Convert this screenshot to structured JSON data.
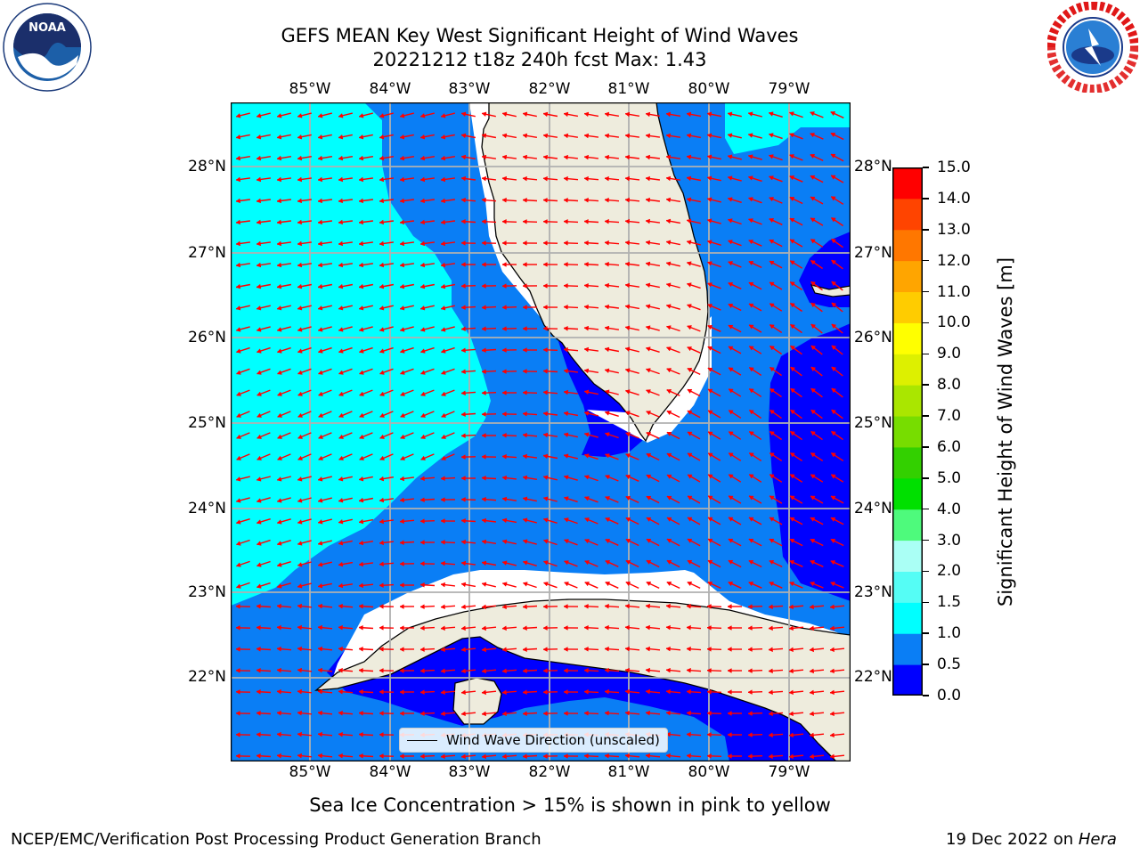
{
  "header": {
    "title_line1": "GEFS MEAN Key West Significant Height of Wind Waves",
    "title_line2": "20221212 t18z 240h fcst   Max: 1.43"
  },
  "logos": {
    "left": "NOAA",
    "right": "NATIONAL WEATHER SERVICE"
  },
  "map": {
    "lon_labels": [
      "85°W",
      "84°W",
      "83°W",
      "82°W",
      "81°W",
      "80°W",
      "79°W"
    ],
    "lat_labels": [
      "28°N",
      "27°N",
      "26°N",
      "25°N",
      "24°N",
      "23°N",
      "22°N"
    ],
    "legend_label": "Wind Wave Direction (unscaled)",
    "colors": {
      "land": "#eeecdd",
      "band_0_0_5": "#0000ff",
      "band_0_5_1_0": "#0a7ef5",
      "band_1_0_1_5": "#00ffff",
      "arrow": "#ff0000",
      "grid": "#b0b0b0"
    }
  },
  "colorbar": {
    "label": "Significant Height of Wind Waves [m]",
    "ticks": [
      "15.0",
      "14.0",
      "13.0",
      "12.0",
      "11.0",
      "10.0",
      "9.0",
      "8.0",
      "7.0",
      "6.0",
      "5.0",
      "4.0",
      "3.0",
      "2.0",
      "1.5",
      "1.0",
      "0.5",
      "0.0"
    ],
    "bands": [
      {
        "range": "0.0-0.5",
        "color": "#0000ff"
      },
      {
        "range": "0.5-1.0",
        "color": "#0a7ef5"
      },
      {
        "range": "1.0-1.5",
        "color": "#00ffff"
      },
      {
        "range": "1.5-2.0",
        "color": "#55fdf5"
      },
      {
        "range": "2.0-3.0",
        "color": "#aafff5"
      },
      {
        "range": "3.0-4.0",
        "color": "#4efa7c"
      },
      {
        "range": "4.0-5.0",
        "color": "#00e000"
      },
      {
        "range": "5.0-6.0",
        "color": "#33d000"
      },
      {
        "range": "6.0-7.0",
        "color": "#77dd00"
      },
      {
        "range": "7.0-8.0",
        "color": "#aae600"
      },
      {
        "range": "8.0-9.0",
        "color": "#ddf000"
      },
      {
        "range": "9.0-10.0",
        "color": "#ffff00"
      },
      {
        "range": "10.0-11.0",
        "color": "#ffcc00"
      },
      {
        "range": "11.0-12.0",
        "color": "#ffa500"
      },
      {
        "range": "12.0-13.0",
        "color": "#ff7700"
      },
      {
        "range": "13.0-14.0",
        "color": "#ff4400"
      },
      {
        "range": "14.0-15.0",
        "color": "#ff0000"
      }
    ]
  },
  "notes": {
    "sea_ice": "Sea Ice Concentration > 15% is shown in pink to yellow",
    "footer_left": "NCEP/EMC/Verification Post Processing Product Generation Branch",
    "footer_right_prefix": "19 Dec 2022 on ",
    "footer_right_host": "Hera"
  }
}
